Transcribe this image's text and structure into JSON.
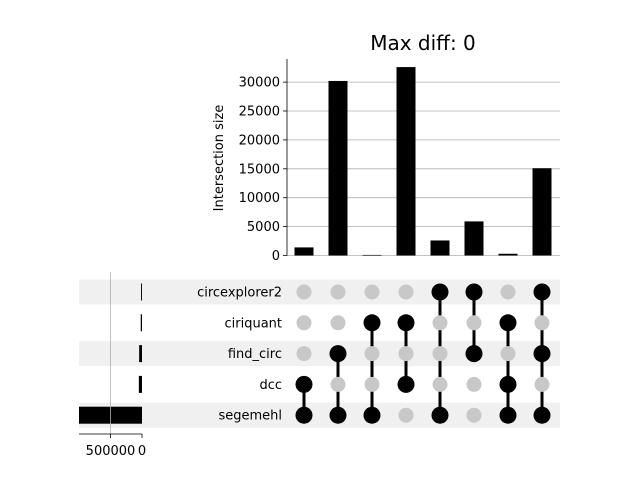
{
  "chart_data": {
    "type": "bar",
    "title": "Max diff: 0",
    "ylabel": "Intersection size",
    "ylim": [
      0,
      34000
    ],
    "yticks": [
      "0",
      "5000",
      "10000",
      "15000",
      "20000",
      "25000",
      "30000"
    ],
    "grid": true,
    "sets": [
      "circexplorer2",
      "ciriquant",
      "find_circ",
      "dcc",
      "segemehl"
    ],
    "set_size_ticks": [
      "500000",
      "0"
    ],
    "set_size_xlim": [
      0,
      1000000
    ],
    "set_sizes": [
      15000,
      20000,
      45000,
      50000,
      1000000
    ],
    "intersection_values": [
      1400,
      30200,
      100,
      32600,
      2600,
      5900,
      300,
      15100
    ],
    "memberships": [
      [
        false,
        false,
        false,
        true,
        true
      ],
      [
        false,
        false,
        true,
        false,
        true
      ],
      [
        false,
        true,
        false,
        false,
        true
      ],
      [
        false,
        true,
        false,
        true,
        false
      ],
      [
        true,
        false,
        false,
        false,
        true
      ],
      [
        true,
        false,
        true,
        false,
        false
      ],
      [
        false,
        true,
        false,
        true,
        true
      ],
      [
        true,
        false,
        true,
        false,
        true
      ]
    ],
    "colors": {
      "bar": "#000000",
      "dot_active": "#000000",
      "dot_inactive": "#c8c8c8",
      "row_shade": "#f0f0f0",
      "grid": "#b0b0b0"
    }
  }
}
